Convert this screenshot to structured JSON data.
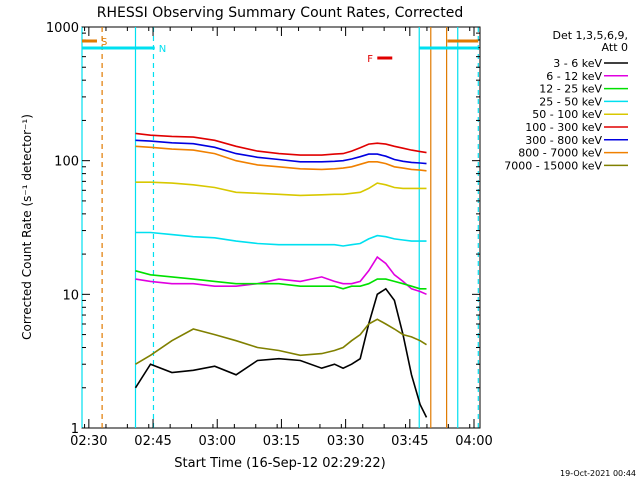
{
  "chart_data": {
    "type": "line",
    "title": "RHESSI Observing Summary Count Rates, Corrected",
    "xlabel": "Start Time (16-Sep-12 02:29:22)",
    "ylabel": "Corrected Count Rate (s⁻¹ detector⁻¹)",
    "ylog": true,
    "ylim": [
      1,
      1000
    ],
    "xlim_minutes_after_0229": [
      -1,
      92
    ],
    "x_ticks": [
      {
        "label": "02:30",
        "t": 0.6
      },
      {
        "label": "02:45",
        "t": 15.6
      },
      {
        "label": "03:00",
        "t": 30.6
      },
      {
        "label": "03:15",
        "t": 45.6
      },
      {
        "label": "03:30",
        "t": 60.6
      },
      {
        "label": "03:45",
        "t": 75.6
      },
      {
        "label": "04:00",
        "t": 90.6
      }
    ],
    "y_ticks": [
      "1",
      "10",
      "100",
      "1000"
    ],
    "legend_title": "Det 1,3,5,6,9,",
    "legend_subtitle": "Att 0",
    "legend_position": "right",
    "footer_date": "19-Oct-2021 00:44",
    "markers": [
      {
        "label": "S",
        "color": "#e07a00",
        "t_start": -1,
        "t_end": 2.5
      },
      {
        "label": "N",
        "color": "#00e0f0",
        "t_start": -1,
        "t_end": 16
      },
      {
        "label": "F",
        "color": "#e00000",
        "t_start": 68,
        "t_end": 71.5
      }
    ],
    "vertical_lines": [
      {
        "t": 3.7,
        "color": "#e07a00",
        "dashed": true
      },
      {
        "t": 15.7,
        "color": "#00e0f0",
        "dashed": true
      },
      {
        "t": 11.5,
        "color": "#00e0f0",
        "dashed": false
      },
      {
        "t": 77.8,
        "color": "#00e0f0",
        "dashed": false
      },
      {
        "t": 80.5,
        "color": "#e07a00",
        "dashed": false
      },
      {
        "t": 84.2,
        "color": "#e07a00",
        "dashed": false
      },
      {
        "t": 91.6,
        "color": "#00e0f0",
        "dashed": true
      },
      {
        "t": -1,
        "color": "#00e0f0",
        "dashed": false
      },
      {
        "t": 86.8,
        "color": "#00e0f0",
        "dashed": false
      }
    ],
    "series": [
      {
        "name": "3 - 6 keV",
        "color": "#000000",
        "t": [
          11.5,
          15,
          20,
          25,
          30,
          35,
          40,
          45,
          50,
          55,
          58,
          60,
          62,
          64,
          66,
          68,
          70,
          72,
          74,
          76,
          78,
          79.5
        ],
        "values": [
          2.0,
          3.0,
          2.6,
          2.7,
          2.9,
          2.5,
          3.2,
          3.3,
          3.2,
          2.8,
          3.0,
          2.8,
          3.0,
          3.3,
          6.0,
          10.0,
          11.0,
          9.0,
          5.0,
          2.5,
          1.5,
          1.2
        ]
      },
      {
        "name": "6 - 12 keV",
        "color": "#e000e0",
        "t": [
          11.5,
          15,
          20,
          25,
          30,
          35,
          40,
          45,
          50,
          55,
          58,
          60,
          62,
          64,
          66,
          68,
          70,
          72,
          74,
          76,
          78,
          79.5
        ],
        "values": [
          13.0,
          12.5,
          12.0,
          12.0,
          11.5,
          11.5,
          12.0,
          13.0,
          12.5,
          13.5,
          12.5,
          12.0,
          12.0,
          12.5,
          15.0,
          19.0,
          17.0,
          14.0,
          12.5,
          11.0,
          10.5,
          10.0
        ]
      },
      {
        "name": "12 - 25 keV",
        "color": "#00e000",
        "t": [
          11.5,
          15,
          20,
          25,
          30,
          35,
          40,
          45,
          50,
          55,
          58,
          60,
          62,
          64,
          66,
          68,
          70,
          72,
          74,
          76,
          78,
          79.5
        ],
        "values": [
          15.0,
          14.0,
          13.5,
          13.0,
          12.5,
          12.0,
          12.0,
          12.0,
          11.5,
          11.5,
          11.5,
          11.0,
          11.5,
          11.5,
          12.0,
          13.0,
          13.0,
          12.5,
          12.0,
          11.5,
          11.0,
          11.0
        ]
      },
      {
        "name": "25 - 50 keV",
        "color": "#00e0f0",
        "t": [
          11.5,
          15,
          20,
          25,
          30,
          35,
          40,
          45,
          50,
          55,
          58,
          60,
          62,
          64,
          66,
          68,
          70,
          72,
          74,
          76,
          78,
          79.5
        ],
        "values": [
          29.0,
          29.0,
          28.0,
          27.0,
          26.5,
          25.0,
          24.0,
          23.5,
          23.5,
          23.5,
          23.5,
          23.0,
          23.5,
          24.0,
          26.0,
          27.5,
          27.0,
          26.0,
          25.5,
          25.0,
          25.0,
          25.0
        ]
      },
      {
        "name": "50 - 100 keV",
        "color": "#d8c800",
        "t": [
          11.5,
          15,
          20,
          25,
          30,
          35,
          40,
          45,
          50,
          55,
          58,
          60,
          62,
          64,
          66,
          68,
          70,
          72,
          74,
          76,
          78,
          79.5
        ],
        "values": [
          69.0,
          69.0,
          68.0,
          66.0,
          63.0,
          58.0,
          57.0,
          56.0,
          55.0,
          55.5,
          56.0,
          56.0,
          57.0,
          58.0,
          62.0,
          68.0,
          66.0,
          63.0,
          62.0,
          62.0,
          62.0,
          62.0
        ]
      },
      {
        "name": "100 - 300 keV",
        "color": "#e00000",
        "t": [
          11.5,
          15,
          20,
          25,
          30,
          35,
          40,
          45,
          50,
          55,
          58,
          60,
          62,
          64,
          66,
          68,
          70,
          72,
          74,
          76,
          78,
          79.5
        ],
        "values": [
          160.0,
          155.0,
          152.0,
          150.0,
          142.0,
          128.0,
          118.0,
          113.0,
          110.0,
          110.0,
          112.0,
          113.0,
          118.0,
          125.0,
          133.0,
          135.0,
          133.0,
          128.0,
          124.0,
          120.0,
          117.0,
          115.0
        ]
      },
      {
        "name": "300 - 800 keV",
        "color": "#0000e0",
        "t": [
          11.5,
          15,
          20,
          25,
          30,
          35,
          40,
          45,
          50,
          55,
          58,
          60,
          62,
          64,
          66,
          68,
          70,
          72,
          74,
          76,
          78,
          79.5
        ],
        "values": [
          142.0,
          140.0,
          136.0,
          134.0,
          126.0,
          113.0,
          106.0,
          102.0,
          98.0,
          98.0,
          99.0,
          100.0,
          103.0,
          107.0,
          112.0,
          112.0,
          108.0,
          102.0,
          99.0,
          97.0,
          96.0,
          95.0
        ]
      },
      {
        "name": "800 - 7000 keV",
        "color": "#f08000",
        "t": [
          11.5,
          15,
          20,
          25,
          30,
          35,
          40,
          45,
          50,
          55,
          58,
          60,
          62,
          64,
          66,
          68,
          70,
          72,
          74,
          76,
          78,
          79.5
        ],
        "values": [
          128.0,
          126.0,
          122.0,
          120.0,
          113.0,
          100.0,
          93.0,
          90.0,
          87.0,
          86.0,
          87.0,
          88.0,
          90.0,
          94.0,
          98.0,
          98.0,
          95.0,
          90.0,
          88.0,
          86.0,
          85.0,
          84.0
        ]
      },
      {
        "name": "7000 - 15000 keV",
        "color": "#808000",
        "t": [
          11.5,
          15,
          20,
          25,
          30,
          35,
          40,
          45,
          50,
          55,
          58,
          60,
          62,
          64,
          66,
          68,
          70,
          72,
          74,
          76,
          78,
          79.5
        ],
        "values": [
          3.0,
          3.5,
          4.5,
          5.5,
          5.0,
          4.5,
          4.0,
          3.8,
          3.5,
          3.6,
          3.8,
          4.0,
          4.5,
          5.0,
          6.0,
          6.5,
          6.0,
          5.5,
          5.0,
          4.8,
          4.5,
          4.2
        ]
      }
    ]
  }
}
